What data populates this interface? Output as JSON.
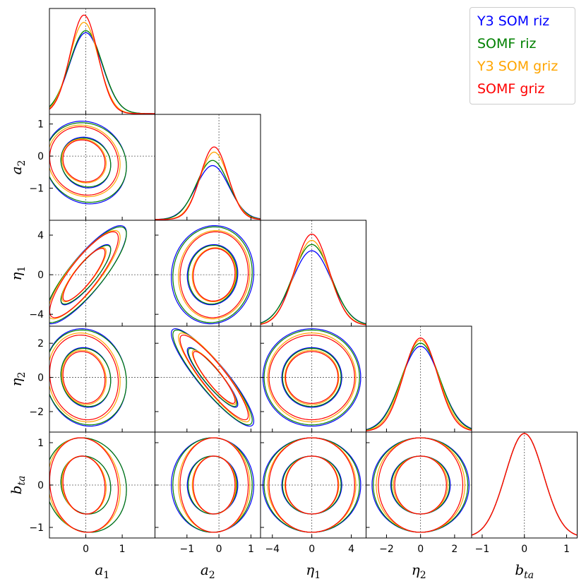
{
  "chart_data": {
    "type": "triangle_contour",
    "title": "",
    "parameters": [
      {
        "label": "a",
        "sub": "1",
        "range": [
          -1.0,
          1.9
        ],
        "ticks": [
          -1,
          0,
          1
        ],
        "show_ticks": [
          0,
          1
        ]
      },
      {
        "label": "a",
        "sub": "2",
        "range": [
          -2.0,
          1.3
        ],
        "ticks": [
          -1,
          0,
          1
        ],
        "show_ticks": [
          -1,
          0,
          1
        ]
      },
      {
        "label": "η",
        "sub": "1",
        "range": [
          -5.2,
          5.5
        ],
        "ticks": [
          -4,
          0,
          4
        ],
        "show_ticks": [
          -4,
          0,
          4
        ]
      },
      {
        "label": "η",
        "sub": "2",
        "range": [
          -3.2,
          3.0
        ],
        "ticks": [
          -2,
          0,
          2
        ],
        "show_ticks": [
          -2,
          0,
          2
        ]
      },
      {
        "label": "b",
        "sub": "ta",
        "range": [
          -1.25,
          1.25
        ],
        "ticks": [
          -1,
          0,
          1
        ],
        "show_ticks": [
          -1,
          0,
          1
        ]
      }
    ],
    "fiducial": [
      0,
      0,
      0,
      0,
      0
    ],
    "legend_position": "top-right",
    "series": [
      {
        "name": "Y3 SOM riz",
        "color": "#0000ff",
        "mean": [
          0.0,
          -0.2,
          0.0,
          0.0,
          0.0
        ],
        "sigma": [
          0.45,
          0.52,
          2.0,
          1.15,
          0.45
        ],
        "marg_peak": [
          0.78,
          0.52,
          0.72,
          0.82,
          1.0
        ]
      },
      {
        "name": "SOMF riz",
        "color": "#008000",
        "mean": [
          0.0,
          -0.2,
          0.0,
          0.0,
          0.0
        ],
        "sigma": [
          0.45,
          0.5,
          1.95,
          1.12,
          0.45
        ],
        "marg_peak": [
          0.8,
          0.57,
          0.78,
          0.85,
          1.0
        ]
      },
      {
        "name": "Y3 SOM griz",
        "color": "#ffa500",
        "mean": [
          -0.05,
          -0.15,
          0.0,
          0.0,
          0.0
        ],
        "sigma": [
          0.4,
          0.45,
          1.8,
          1.05,
          0.45
        ],
        "marg_peak": [
          0.88,
          0.65,
          0.82,
          0.88,
          1.0
        ]
      },
      {
        "name": "SOMF griz",
        "color": "#ff0000",
        "mean": [
          -0.05,
          -0.15,
          0.0,
          0.0,
          0.0
        ],
        "sigma": [
          0.38,
          0.43,
          1.75,
          1.0,
          0.45
        ],
        "marg_peak": [
          0.95,
          0.7,
          0.88,
          0.9,
          1.0
        ]
      }
    ],
    "correlations": [
      [
        1.0,
        -0.1,
        0.85,
        -0.1,
        -0.1
      ],
      [
        -0.1,
        1.0,
        0.05,
        -0.9,
        0.0
      ],
      [
        0.85,
        0.05,
        1.0,
        0.0,
        0.0
      ],
      [
        -0.1,
        -0.9,
        0.0,
        1.0,
        0.0
      ],
      [
        -0.1,
        0.0,
        0.0,
        0.0,
        1.0
      ]
    ]
  }
}
